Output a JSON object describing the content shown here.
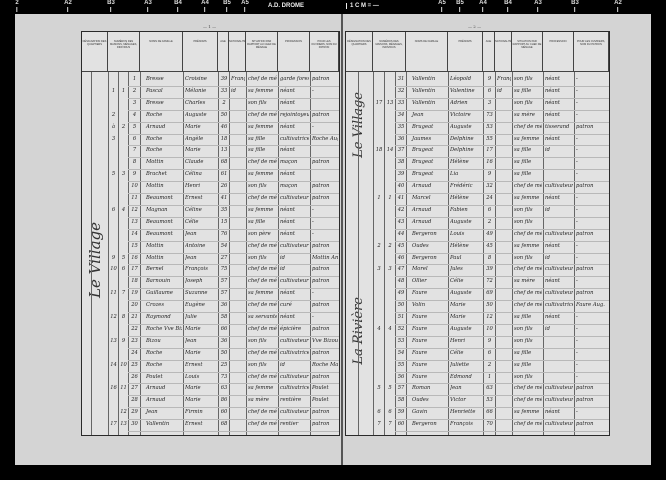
{
  "ruler": {
    "title": "A.D. DROME",
    "scale": "1 C M = —",
    "marks_left": [
      "2",
      "A2",
      "B3",
      "A3",
      "B4",
      "A4",
      "B5",
      "A5"
    ],
    "marks_right": [
      "A5",
      "B5",
      "A4",
      "B4",
      "A3",
      "B3",
      "A2"
    ]
  },
  "headers": {
    "designation": "DÉSIGNATION DES QUARTIERS",
    "numeros": "NUMÉROS DES MAISONS, MÉNAGES, INDIVIDUS",
    "noms": "NOMS DE FAMILLE",
    "prenoms": "PRÉNOMS",
    "age": "AGE",
    "nationalite": "NATIONALITÉ",
    "situation": "SITUATION PAR RAPPORT AU CHEF DE MÉNAGE",
    "profession": "PROFESSION",
    "patron": "POUR LES OUVRIERS, NOM DU PATRON"
  },
  "left_page": {
    "page_number": "— 1 —",
    "quartier": "Le Village",
    "rows": [
      {
        "g1": "",
        "g2": "",
        "n": "1",
        "nom": "Bresse",
        "prenom": "Croisine",
        "age": "39",
        "nat": "Français",
        "sit": "chef de ménage",
        "prof": "garde forestier",
        "pat": "patron"
      },
      {
        "g1": "1",
        "g2": "1",
        "n": "2",
        "nom": "Pascal",
        "prenom": "Mélanie",
        "age": "33",
        "nat": "id",
        "sit": "sa femme",
        "prof": "néant",
        "pat": "-"
      },
      {
        "g1": "",
        "g2": "",
        "n": "3",
        "nom": "Bresse",
        "prenom": "Charles",
        "age": "2",
        "nat": "",
        "sit": "son fils",
        "prof": "néant",
        "pat": ""
      },
      {
        "g1": "2",
        "g2": "",
        "n": "4",
        "nom": "Roche",
        "prenom": "Auguste",
        "age": "50",
        "nat": "",
        "sit": "chef de ménage",
        "prof": "rejointoyeur",
        "pat": "patron"
      },
      {
        "g1": "à",
        "g2": "2",
        "n": "5",
        "nom": "Arnaud",
        "prenom": "Marie",
        "age": "46",
        "nat": "",
        "sit": "sa femme",
        "prof": "néant",
        "pat": "-"
      },
      {
        "g1": "3",
        "g2": "",
        "n": "6",
        "nom": "Roche",
        "prenom": "Angèle",
        "age": "18",
        "nat": "",
        "sit": "sa fille",
        "prof": "cultivatrice",
        "pat": "Roche Aug."
      },
      {
        "g1": "",
        "g2": "",
        "n": "7",
        "nom": "Roche",
        "prenom": "Marie",
        "age": "13",
        "nat": "",
        "sit": "sa fille",
        "prof": "néant",
        "pat": ""
      },
      {
        "g1": "",
        "g2": "",
        "n": "8",
        "nom": "Mottin",
        "prenom": "Claude",
        "age": "68",
        "nat": "",
        "sit": "chef de ménage",
        "prof": "maçon",
        "pat": "patron"
      },
      {
        "g1": "5",
        "g2": "3",
        "n": "9",
        "nom": "Brachet",
        "prenom": "Célina",
        "age": "61",
        "nat": "",
        "sit": "sa femme",
        "prof": "néant",
        "pat": ""
      },
      {
        "g1": "",
        "g2": "",
        "n": "10",
        "nom": "Mottin",
        "prenom": "Henri",
        "age": "26",
        "nat": "",
        "sit": "son fils",
        "prof": "maçon",
        "pat": "patron"
      },
      {
        "g1": "",
        "g2": "",
        "n": "11",
        "nom": "Beaumont",
        "prenom": "Ernest",
        "age": "41",
        "nat": "",
        "sit": "chef de ménage",
        "prof": "cultivateur",
        "pat": "patron"
      },
      {
        "g1": "6",
        "g2": "4",
        "n": "12",
        "nom": "Magnan",
        "prenom": "Céline",
        "age": "35",
        "nat": "",
        "sit": "sa femme",
        "prof": "néant",
        "pat": "-"
      },
      {
        "g1": "",
        "g2": "",
        "n": "13",
        "nom": "Beaumont",
        "prenom": "Célie",
        "age": "15",
        "nat": "",
        "sit": "sa fille",
        "prof": "néant",
        "pat": "-"
      },
      {
        "g1": "",
        "g2": "",
        "n": "14",
        "nom": "Beaumont",
        "prenom": "Jean",
        "age": "76",
        "nat": "",
        "sit": "son père",
        "prof": "néant",
        "pat": "-"
      },
      {
        "g1": "",
        "g2": "",
        "n": "15",
        "nom": "Mottin",
        "prenom": "Antoine",
        "age": "54",
        "nat": "",
        "sit": "chef de ménage",
        "prof": "cultivateur",
        "pat": "patron"
      },
      {
        "g1": "9",
        "g2": "5",
        "n": "16",
        "nom": "Mottin",
        "prenom": "Jean",
        "age": "27",
        "nat": "",
        "sit": "son fils",
        "prof": "id",
        "pat": "Mottin Antoine"
      },
      {
        "g1": "10",
        "g2": "6",
        "n": "17",
        "nom": "Bernel",
        "prenom": "François",
        "age": "75",
        "nat": "",
        "sit": "chef de ménage",
        "prof": "id",
        "pat": "patron"
      },
      {
        "g1": "",
        "g2": "",
        "n": "18",
        "nom": "Barnouin",
        "prenom": "Joseph",
        "age": "57",
        "nat": "",
        "sit": "chef de ménage",
        "prof": "cultivateur",
        "pat": "patron"
      },
      {
        "g1": "11",
        "g2": "7",
        "n": "19",
        "nom": "Guillaume",
        "prenom": "Suzanne",
        "age": "57",
        "nat": "",
        "sit": "sa femme",
        "prof": "néant",
        "pat": "-"
      },
      {
        "g1": "",
        "g2": "",
        "n": "20",
        "nom": "Crozes",
        "prenom": "Eugène",
        "age": "36",
        "nat": "",
        "sit": "chef de ménage",
        "prof": "curé",
        "pat": "patron"
      },
      {
        "g1": "12",
        "g2": "8",
        "n": "21",
        "nom": "Raymond",
        "prenom": "Julie",
        "age": "58",
        "nat": "",
        "sit": "sa servante",
        "prof": "néant",
        "pat": "-"
      },
      {
        "g1": "",
        "g2": "",
        "n": "22",
        "nom": "Roche Vve Bizou",
        "prenom": "Marie",
        "age": "66",
        "nat": "",
        "sit": "chef de ménage",
        "prof": "épicière",
        "pat": "patron"
      },
      {
        "g1": "13",
        "g2": "9",
        "n": "23",
        "nom": "Bizou",
        "prenom": "Jean",
        "age": "36",
        "nat": "",
        "sit": "son fils",
        "prof": "cultivateur",
        "pat": "Vve Bizou"
      },
      {
        "g1": "",
        "g2": "",
        "n": "24",
        "nom": "Roche",
        "prenom": "Marie",
        "age": "50",
        "nat": "",
        "sit": "chef de ménage",
        "prof": "cultivatrice",
        "pat": "patron"
      },
      {
        "g1": "14",
        "g2": "10",
        "n": "25",
        "nom": "Roche",
        "prenom": "Ernest",
        "age": "25",
        "nat": "",
        "sit": "son fils",
        "prof": "id",
        "pat": "Roche Marie"
      },
      {
        "g1": "",
        "g2": "",
        "n": "26",
        "nom": "Poulet",
        "prenom": "Louis",
        "age": "73",
        "nat": "",
        "sit": "chef de ménage",
        "prof": "cultivateur",
        "pat": "patron"
      },
      {
        "g1": "16",
        "g2": "11",
        "n": "27",
        "nom": "Arnaud",
        "prenom": "Marie",
        "age": "63",
        "nat": "",
        "sit": "sa femme",
        "prof": "cultivatrice",
        "pat": "Poulet"
      },
      {
        "g1": "",
        "g2": "",
        "n": "28",
        "nom": "Arnaud",
        "prenom": "Marie",
        "age": "86",
        "nat": "",
        "sit": "sa mère",
        "prof": "rentière",
        "pat": "Poulet"
      },
      {
        "g1": "",
        "g2": "12",
        "n": "29",
        "nom": "Jean",
        "prenom": "Firmin",
        "age": "60",
        "nat": "",
        "sit": "chef de ménage",
        "prof": "cultivateur",
        "pat": "patron"
      },
      {
        "g1": "17",
        "g2": "13",
        "n": "30",
        "nom": "Vallentin",
        "prenom": "Ernest",
        "age": "68",
        "nat": "",
        "sit": "chef de ménage",
        "prof": "rentier",
        "pat": "patron"
      }
    ]
  },
  "right_page": {
    "page_number": "— 2 —",
    "quartier_top": "Le Village",
    "quartier_bottom": "La Rivière",
    "rows": [
      {
        "g1": "",
        "g2": "",
        "n": "31",
        "nom": "Vallentin",
        "prenom": "Léopold",
        "age": "9",
        "nat": "Française",
        "sit": "son fils",
        "prof": "néant",
        "pat": "-"
      },
      {
        "g1": "",
        "g2": "",
        "n": "32",
        "nom": "Vallentin",
        "prenom": "Valentine",
        "age": "6",
        "nat": "id",
        "sit": "sa fille",
        "prof": "néant",
        "pat": "-"
      },
      {
        "g1": "17",
        "g2": "13",
        "n": "33",
        "nom": "Vallentin",
        "prenom": "Adrien",
        "age": "3",
        "nat": "",
        "sit": "son fils",
        "prof": "néant",
        "pat": "-"
      },
      {
        "g1": "",
        "g2": "",
        "n": "34",
        "nom": "Jean",
        "prenom": "Victoire",
        "age": "73",
        "nat": "",
        "sit": "sa mère",
        "prof": "néant",
        "pat": "-"
      },
      {
        "g1": "",
        "g2": "",
        "n": "35",
        "nom": "Brugeat",
        "prenom": "Auguste",
        "age": "53",
        "nat": "",
        "sit": "chef de ménage",
        "prof": "tisserand",
        "pat": "patron"
      },
      {
        "g1": "",
        "g2": "",
        "n": "36",
        "nom": "Jaumes",
        "prenom": "Delphine",
        "age": "55",
        "nat": "",
        "sit": "sa femme",
        "prof": "néant",
        "pat": "-"
      },
      {
        "g1": "18",
        "g2": "14",
        "n": "37",
        "nom": "Brugeat",
        "prenom": "Delphine",
        "age": "17",
        "nat": "",
        "sit": "sa fille",
        "prof": "id",
        "pat": "-"
      },
      {
        "g1": "",
        "g2": "",
        "n": "38",
        "nom": "Brugeat",
        "prenom": "Hélène",
        "age": "16",
        "nat": "",
        "sit": "sa fille",
        "prof": "",
        "pat": "-"
      },
      {
        "g1": "",
        "g2": "",
        "n": "39",
        "nom": "Brugeat",
        "prenom": "Lia",
        "age": "9",
        "nat": "",
        "sit": "sa fille",
        "prof": "",
        "pat": "-"
      },
      {
        "g1": "",
        "g2": "",
        "n": "40",
        "nom": "Arnaud",
        "prenom": "Frédéric",
        "age": "32",
        "nat": "",
        "sit": "chef de ménage",
        "prof": "cultivateur",
        "pat": "patron"
      },
      {
        "g1": "1",
        "g2": "1",
        "n": "41",
        "nom": "Marcel",
        "prenom": "Hélène",
        "age": "24",
        "nat": "",
        "sit": "sa femme",
        "prof": "néant",
        "pat": "-"
      },
      {
        "g1": "",
        "g2": "",
        "n": "42",
        "nom": "Arnaud",
        "prenom": "Fabien",
        "age": "6",
        "nat": "",
        "sit": "son fils",
        "prof": "id",
        "pat": "-"
      },
      {
        "g1": "",
        "g2": "",
        "n": "43",
        "nom": "Arnaud",
        "prenom": "Auguste",
        "age": "2",
        "nat": "",
        "sit": "son fils",
        "prof": "",
        "pat": "-"
      },
      {
        "g1": "",
        "g2": "",
        "n": "44",
        "nom": "Bergeron",
        "prenom": "Louis",
        "age": "49",
        "nat": "",
        "sit": "chef de ménage",
        "prof": "cultivateur",
        "pat": "patron"
      },
      {
        "g1": "2",
        "g2": "2",
        "n": "45",
        "nom": "Oudes",
        "prenom": "Hélène",
        "age": "45",
        "nat": "",
        "sit": "sa femme",
        "prof": "néant",
        "pat": "-"
      },
      {
        "g1": "",
        "g2": "",
        "n": "46",
        "nom": "Bergeron",
        "prenom": "Paul",
        "age": "8",
        "nat": "",
        "sit": "son fils",
        "prof": "id",
        "pat": "-"
      },
      {
        "g1": "3",
        "g2": "3",
        "n": "47",
        "nom": "Morel",
        "prenom": "Jules",
        "age": "39",
        "nat": "",
        "sit": "chef de ménage",
        "prof": "cultivateur",
        "pat": "patron"
      },
      {
        "g1": "",
        "g2": "",
        "n": "48",
        "nom": "Ollier",
        "prenom": "Célie",
        "age": "72",
        "nat": "",
        "sit": "sa mère",
        "prof": "néant",
        "pat": "-"
      },
      {
        "g1": "",
        "g2": "",
        "n": "49",
        "nom": "Faure",
        "prenom": "Auguste",
        "age": "69",
        "nat": "",
        "sit": "chef de ménage",
        "prof": "cultivateur",
        "pat": "patron"
      },
      {
        "g1": "",
        "g2": "",
        "n": "50",
        "nom": "Volin",
        "prenom": "Marie",
        "age": "50",
        "nat": "",
        "sit": "chef de ménage",
        "prof": "cultivatrice",
        "pat": "Faure Aug."
      },
      {
        "g1": "",
        "g2": "",
        "n": "51",
        "nom": "Faure",
        "prenom": "Marie",
        "age": "12",
        "nat": "",
        "sit": "sa fille",
        "prof": "néant",
        "pat": "-"
      },
      {
        "g1": "4",
        "g2": "4",
        "n": "52",
        "nom": "Faure",
        "prenom": "Auguste",
        "age": "10",
        "nat": "",
        "sit": "son fils",
        "prof": "id",
        "pat": "-"
      },
      {
        "g1": "",
        "g2": "",
        "n": "53",
        "nom": "Faure",
        "prenom": "Henri",
        "age": "9",
        "nat": "",
        "sit": "son fils",
        "prof": "",
        "pat": "-"
      },
      {
        "g1": "",
        "g2": "",
        "n": "54",
        "nom": "Faure",
        "prenom": "Célie",
        "age": "6",
        "nat": "",
        "sit": "sa fille",
        "prof": "",
        "pat": "-"
      },
      {
        "g1": "",
        "g2": "",
        "n": "55",
        "nom": "Faure",
        "prenom": "Juliette",
        "age": "2",
        "nat": "",
        "sit": "sa fille",
        "prof": "",
        "pat": "-"
      },
      {
        "g1": "",
        "g2": "",
        "n": "56",
        "nom": "Faure",
        "prenom": "Edmond",
        "age": "1",
        "nat": "",
        "sit": "son fils",
        "prof": "",
        "pat": "-"
      },
      {
        "g1": "5",
        "g2": "5",
        "n": "57",
        "nom": "Roman",
        "prenom": "Jean",
        "age": "63",
        "nat": "",
        "sit": "chef de ménage",
        "prof": "cultivateur",
        "pat": "patron"
      },
      {
        "g1": "",
        "g2": "",
        "n": "58",
        "nom": "Oudes",
        "prenom": "Victor",
        "age": "53",
        "nat": "",
        "sit": "chef de ménage",
        "prof": "cultivateur",
        "pat": "patron"
      },
      {
        "g1": "6",
        "g2": "6",
        "n": "59",
        "nom": "Gavin",
        "prenom": "Henriette",
        "age": "66",
        "nat": "",
        "sit": "sa femme",
        "prof": "néant",
        "pat": "-"
      },
      {
        "g1": "7",
        "g2": "7",
        "n": "60",
        "nom": "Bergeron",
        "prenom": "François",
        "age": "70",
        "nat": "",
        "sit": "chef de ménage",
        "prof": "cultivateur",
        "pat": "patron"
      }
    ]
  }
}
